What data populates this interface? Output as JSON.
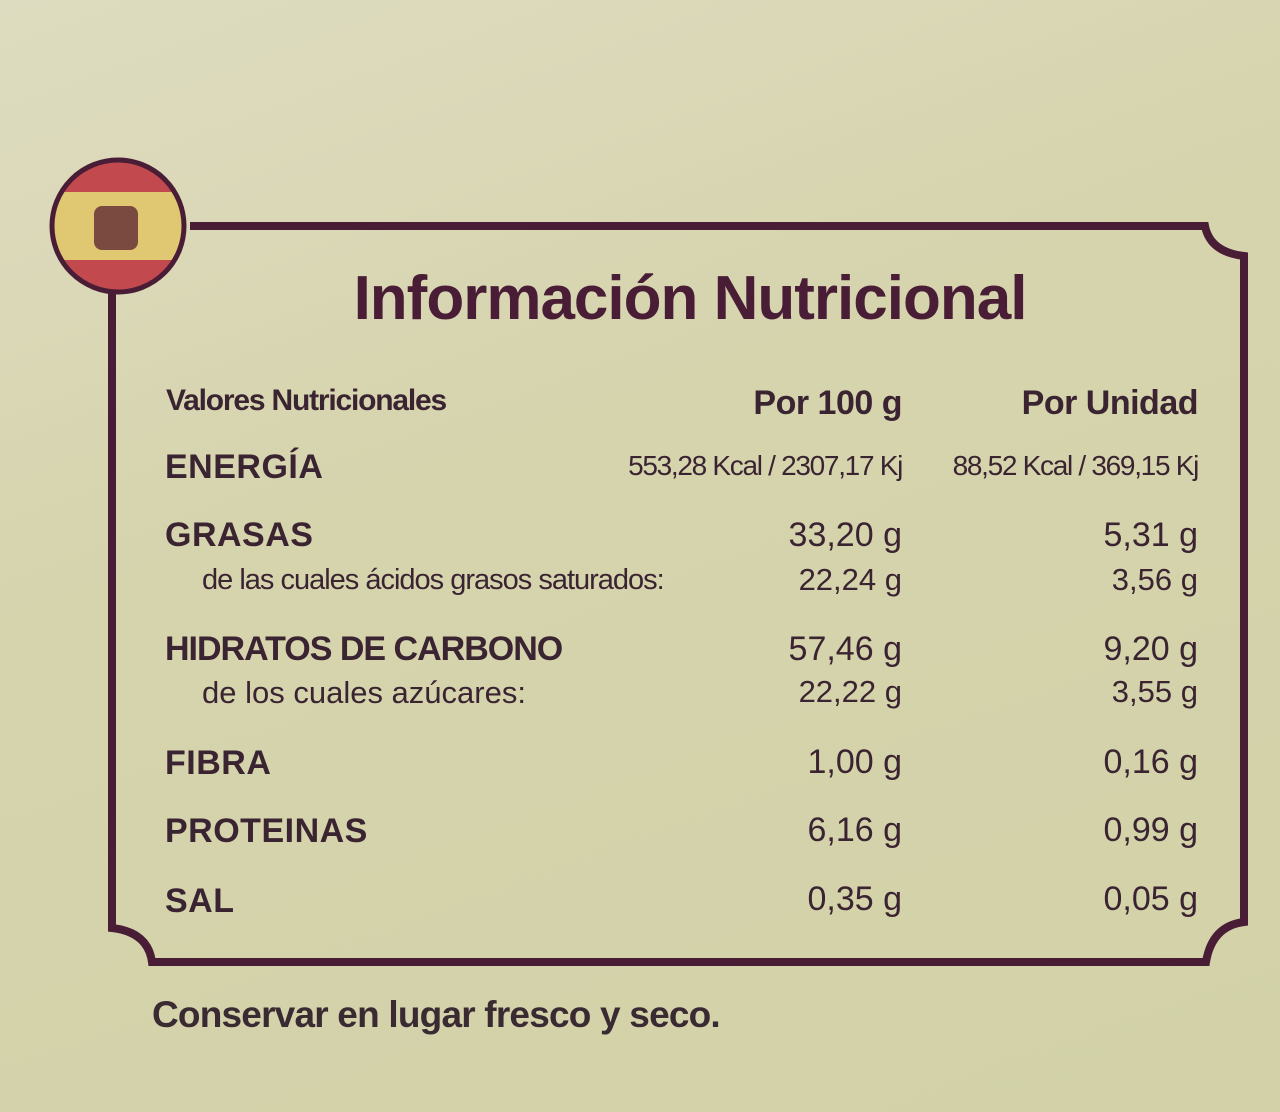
{
  "title": "Información Nutricional",
  "table": {
    "header": [
      "Valores Nutricionales",
      "Por 100 g",
      "Por Unidad"
    ],
    "rows": [
      [
        "ENERGÍA",
        "553,28 Kcal / 2307,17 Kj",
        "88,52 Kcal / 369,15 Kj"
      ],
      [
        "GRASAS",
        "33,20 g",
        "5,31 g"
      ],
      [
        "de las cuales ácidos grasos saturados:",
        "22,24 g",
        "3,56 g"
      ],
      [
        "HIDRATOS DE CARBONO",
        "57,46 g",
        "9,20 g"
      ],
      [
        "de los cuales azúcares:",
        "22,22 g",
        "3,55 g"
      ],
      [
        "FIBRA",
        "1,00 g",
        "0,16 g"
      ],
      [
        "PROTEINAS",
        "6,16 g",
        "0,99 g"
      ],
      [
        "SAL",
        "0,35 g",
        "0,05 g"
      ]
    ]
  },
  "footer": "Conservar en lugar fresco y seco."
}
